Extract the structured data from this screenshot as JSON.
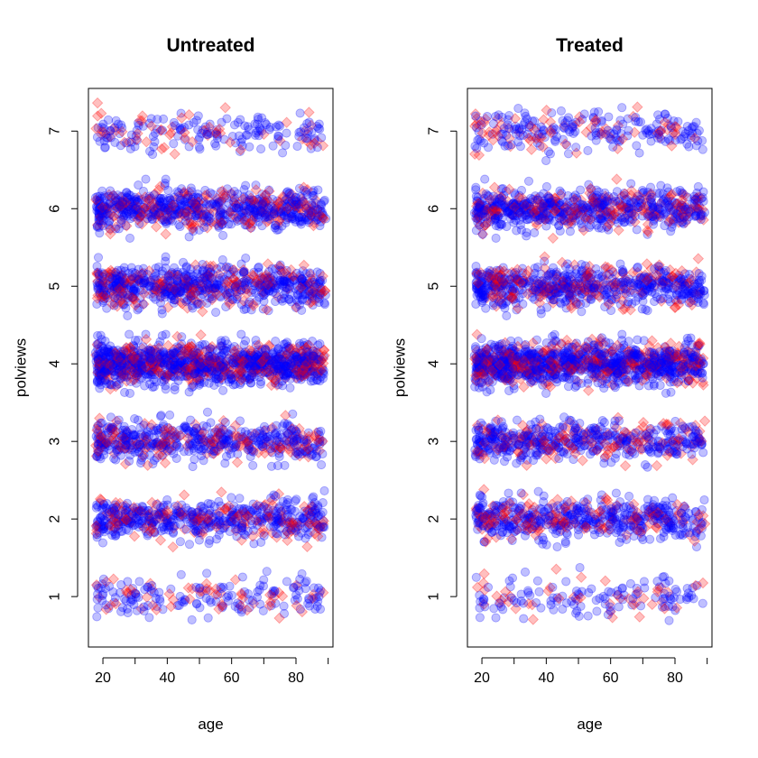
{
  "chart_data": [
    {
      "type": "scatter",
      "title": "Untreated",
      "xlabel": "age",
      "ylabel": "polviews",
      "xticks": [
        "20",
        "40",
        "60",
        "80"
      ],
      "yticks": [
        "1",
        "2",
        "3",
        "4",
        "5",
        "6",
        "7"
      ],
      "xlim": [
        15.5,
        91.5
      ],
      "ylim": [
        0.35,
        7.55
      ],
      "grid": false,
      "point_alpha": 0.25,
      "jitter_sd_y": 0.13,
      "x_range": [
        18,
        89
      ],
      "series": [
        {
          "marker": "circle",
          "color": "#0000ff"
        },
        {
          "marker": "diamond",
          "color": "#ff0000"
        }
      ],
      "density": [
        {
          "y": 1,
          "circle": 150,
          "diamond": 55
        },
        {
          "y": 2,
          "circle": 440,
          "diamond": 160
        },
        {
          "y": 3,
          "circle": 420,
          "diamond": 150
        },
        {
          "y": 4,
          "circle": 900,
          "diamond": 330
        },
        {
          "y": 5,
          "circle": 560,
          "diamond": 200
        },
        {
          "y": 6,
          "circle": 560,
          "diamond": 200
        },
        {
          "y": 7,
          "circle": 150,
          "diamond": 55
        }
      ]
    },
    {
      "type": "scatter",
      "title": "Treated",
      "xlabel": "age",
      "ylabel": "polviews",
      "xticks": [
        "20",
        "40",
        "60",
        "80"
      ],
      "yticks": [
        "1",
        "2",
        "3",
        "4",
        "5",
        "6",
        "7"
      ],
      "xlim": [
        15.5,
        91.5
      ],
      "ylim": [
        0.35,
        7.55
      ],
      "grid": false,
      "point_alpha": 0.25,
      "jitter_sd_y": 0.13,
      "x_range": [
        18,
        89
      ],
      "series": [
        {
          "marker": "circle",
          "color": "#0000ff"
        },
        {
          "marker": "diamond",
          "color": "#ff0000"
        }
      ],
      "density": [
        {
          "y": 1,
          "circle": 120,
          "diamond": 45
        },
        {
          "y": 2,
          "circle": 420,
          "diamond": 150
        },
        {
          "y": 3,
          "circle": 400,
          "diamond": 145
        },
        {
          "y": 4,
          "circle": 850,
          "diamond": 310
        },
        {
          "y": 5,
          "circle": 520,
          "diamond": 190
        },
        {
          "y": 6,
          "circle": 540,
          "diamond": 195
        },
        {
          "y": 7,
          "circle": 190,
          "diamond": 70
        }
      ]
    }
  ]
}
